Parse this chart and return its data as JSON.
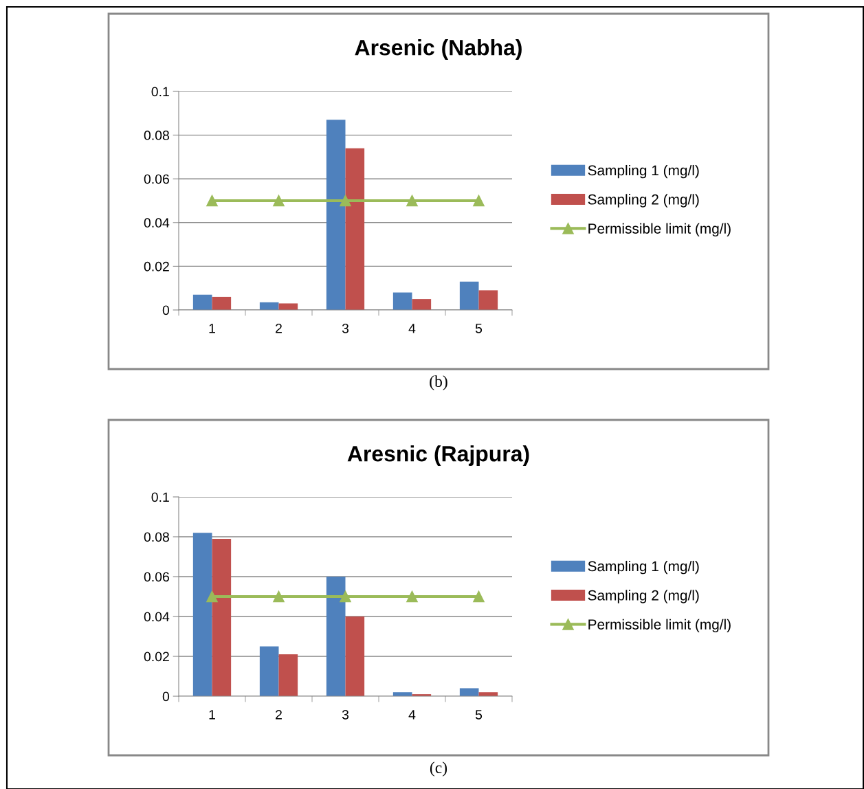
{
  "chart_data": [
    {
      "type": "bar",
      "title": "Arsenic (Nabha)",
      "categories": [
        "1",
        "2",
        "3",
        "4",
        "5"
      ],
      "series": [
        {
          "name": "Sampling 1 (mg/l)",
          "color": "#4f81bd",
          "values": [
            0.007,
            0.0035,
            0.087,
            0.008,
            0.013
          ]
        },
        {
          "name": "Sampling 2 (mg/l)",
          "color": "#c0504d",
          "values": [
            0.006,
            0.003,
            0.074,
            0.005,
            0.009
          ]
        },
        {
          "name": "Permissible limit (mg/l)",
          "type": "line",
          "color": "#9bbb59",
          "marker": "triangle",
          "values": [
            0.05,
            0.05,
            0.05,
            0.05,
            0.05
          ]
        }
      ],
      "ylim": [
        0,
        0.1
      ],
      "yticks": [
        0,
        0.02,
        0.04,
        0.06,
        0.08,
        0.1
      ],
      "grid": "y",
      "legend": "right",
      "annotations": [
        "(b)"
      ]
    },
    {
      "type": "bar",
      "title": "Aresnic (Rajpura)",
      "categories": [
        "1",
        "2",
        "3",
        "4",
        "5"
      ],
      "series": [
        {
          "name": "Sampling 1 (mg/l)",
          "color": "#4f81bd",
          "values": [
            0.082,
            0.025,
            0.06,
            0.002,
            0.004
          ]
        },
        {
          "name": "Sampling 2 (mg/l)",
          "color": "#c0504d",
          "values": [
            0.079,
            0.021,
            0.04,
            0.001,
            0.002
          ]
        },
        {
          "name": "Permissible limit (mg/l)",
          "type": "line",
          "color": "#9bbb59",
          "marker": "triangle",
          "values": [
            0.05,
            0.05,
            0.05,
            0.05,
            0.05
          ]
        }
      ],
      "ylim": [
        0,
        0.1
      ],
      "yticks": [
        0,
        0.02,
        0.04,
        0.06,
        0.08,
        0.1
      ],
      "grid": "y",
      "legend": "right",
      "annotations": [
        "(c)"
      ]
    }
  ]
}
